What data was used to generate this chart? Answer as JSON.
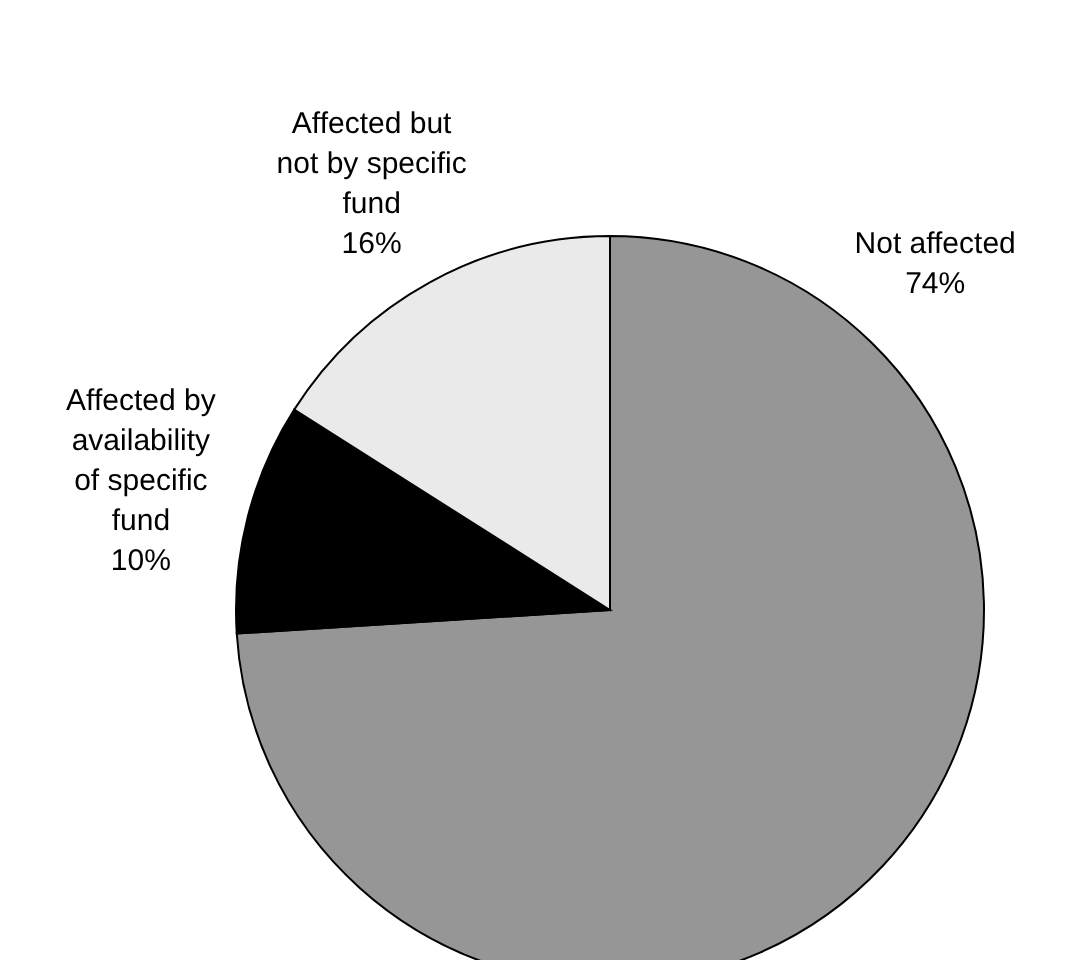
{
  "chart_data": {
    "type": "pie",
    "categories": [
      "Not affected",
      "Affected by availability of specific fund",
      "Affected but not by specific fund"
    ],
    "values": [
      74,
      10,
      16
    ],
    "colors": [
      "#969696",
      "#000000",
      "#eaeaea"
    ],
    "value_labels": [
      "74%",
      "10%",
      "16%"
    ],
    "legend": false
  }
}
